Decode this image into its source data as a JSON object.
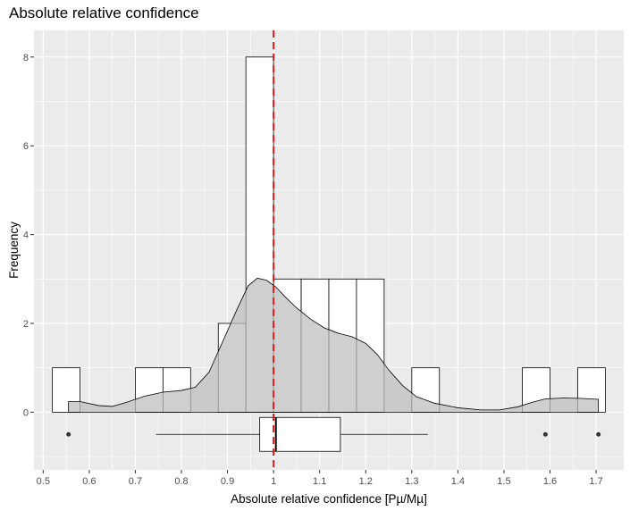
{
  "chart_data": {
    "type": "histogram",
    "title": "Absolute relative confidence",
    "xlabel": "Absolute relative confidence [Pµ/Mµ]",
    "ylabel": "Frequency",
    "xlim": [
      0.48,
      1.76
    ],
    "ylim": [
      -1.3,
      8.6
    ],
    "x_ticks": [
      "0.5",
      "0.6",
      "0.7",
      "0.8",
      "0.9",
      "1",
      "1.1",
      "1.2",
      "1.3",
      "1.4",
      "1.5",
      "1.6",
      "1.7"
    ],
    "y_ticks": [
      "0",
      "2",
      "4",
      "6",
      "8"
    ],
    "grid": true,
    "bin_width": 0.06,
    "bins": [
      {
        "x0": 0.52,
        "x1": 0.58,
        "count": 1
      },
      {
        "x0": 0.58,
        "x1": 0.64,
        "count": 0
      },
      {
        "x0": 0.64,
        "x1": 0.7,
        "count": 0
      },
      {
        "x0": 0.7,
        "x1": 0.76,
        "count": 1
      },
      {
        "x0": 0.76,
        "x1": 0.82,
        "count": 1
      },
      {
        "x0": 0.82,
        "x1": 0.88,
        "count": 0
      },
      {
        "x0": 0.88,
        "x1": 0.94,
        "count": 2
      },
      {
        "x0": 0.94,
        "x1": 1.0,
        "count": 8
      },
      {
        "x0": 1.0,
        "x1": 1.06,
        "count": 3
      },
      {
        "x0": 1.06,
        "x1": 1.12,
        "count": 3
      },
      {
        "x0": 1.12,
        "x1": 1.18,
        "count": 3
      },
      {
        "x0": 1.18,
        "x1": 1.24,
        "count": 3
      },
      {
        "x0": 1.24,
        "x1": 1.3,
        "count": 0
      },
      {
        "x0": 1.3,
        "x1": 1.36,
        "count": 1
      },
      {
        "x0": 1.36,
        "x1": 1.42,
        "count": 0
      },
      {
        "x0": 1.42,
        "x1": 1.48,
        "count": 0
      },
      {
        "x0": 1.48,
        "x1": 1.54,
        "count": 0
      },
      {
        "x0": 1.54,
        "x1": 1.6,
        "count": 1
      },
      {
        "x0": 1.6,
        "x1": 1.66,
        "count": 0
      },
      {
        "x0": 1.66,
        "x1": 1.72,
        "count": 1
      }
    ],
    "density": [
      [
        0.555,
        0.24
      ],
      [
        0.58,
        0.24
      ],
      [
        0.62,
        0.15
      ],
      [
        0.65,
        0.13
      ],
      [
        0.68,
        0.22
      ],
      [
        0.72,
        0.36
      ],
      [
        0.76,
        0.45
      ],
      [
        0.8,
        0.49
      ],
      [
        0.83,
        0.56
      ],
      [
        0.86,
        0.9
      ],
      [
        0.89,
        1.6
      ],
      [
        0.92,
        2.3
      ],
      [
        0.945,
        2.85
      ],
      [
        0.965,
        3.02
      ],
      [
        0.985,
        2.97
      ],
      [
        1.005,
        2.82
      ],
      [
        1.025,
        2.6
      ],
      [
        1.05,
        2.35
      ],
      [
        1.08,
        2.1
      ],
      [
        1.11,
        1.9
      ],
      [
        1.14,
        1.78
      ],
      [
        1.17,
        1.7
      ],
      [
        1.2,
        1.55
      ],
      [
        1.225,
        1.3
      ],
      [
        1.25,
        0.95
      ],
      [
        1.28,
        0.6
      ],
      [
        1.31,
        0.35
      ],
      [
        1.35,
        0.2
      ],
      [
        1.4,
        0.1
      ],
      [
        1.45,
        0.05
      ],
      [
        1.49,
        0.05
      ],
      [
        1.53,
        0.12
      ],
      [
        1.56,
        0.22
      ],
      [
        1.59,
        0.3
      ],
      [
        1.63,
        0.32
      ],
      [
        1.67,
        0.31
      ],
      [
        1.705,
        0.29
      ]
    ],
    "boxplot": {
      "y": -0.5,
      "whisker_low": 0.745,
      "q1": 0.97,
      "median": 1.005,
      "q3": 1.145,
      "whisker_high": 1.335,
      "outliers": [
        0.555,
        1.59,
        1.705
      ]
    },
    "reference_line": {
      "x": 1.0,
      "style": "dashed"
    },
    "colors": {
      "panel_bg": "#ebebeb",
      "grid": "#ffffff",
      "bar_fill": "#ffffff",
      "bar_stroke": "#000000",
      "density_fill": "#bdbdbd",
      "density_stroke": "#000000",
      "reference_line": "#e31a1c",
      "outlier": "#333333"
    }
  }
}
